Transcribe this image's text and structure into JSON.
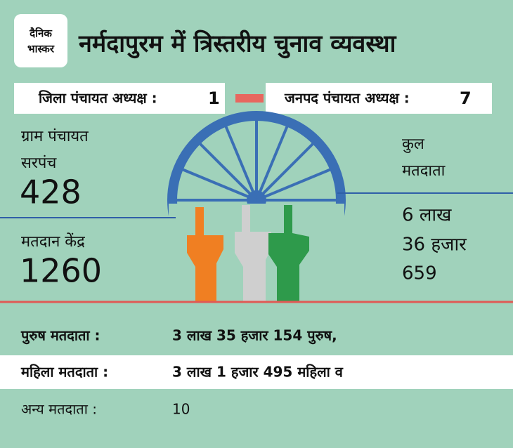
{
  "header": {
    "logo": [
      "दैनिक",
      "भास्कर"
    ],
    "title": "नर्मदापुरम में त्रिस्तरीय चुनाव व्यवस्था"
  },
  "posts": [
    {
      "label": "जिला  पंचायत अध्यक्ष :",
      "count": 1
    },
    {
      "label": "जनपद पंचायत अध्यक्ष :",
      "count": 7
    }
  ],
  "left_stats": [
    {
      "label": [
        "ग्राम पंचायत",
        "सरपंच"
      ],
      "value": 428
    },
    {
      "label": [
        "मतदान केंद्र"
      ],
      "value": 1260
    }
  ],
  "voters_total": {
    "label": [
      "कुल",
      "मतदाता"
    ],
    "value": [
      "6 लाख",
      "36 हजार",
      "659"
    ]
  },
  "rows": [
    {
      "label": "पुरुष मतदाता :",
      "value": "3 लाख 35 हजार 154 पुरुष,"
    },
    {
      "label": "महिला मतदाता :",
      "value": "3 लाख 1 हजार 495 महिला व"
    },
    {
      "label": "अन्य मतदाता  :",
      "value": 10
    }
  ]
}
